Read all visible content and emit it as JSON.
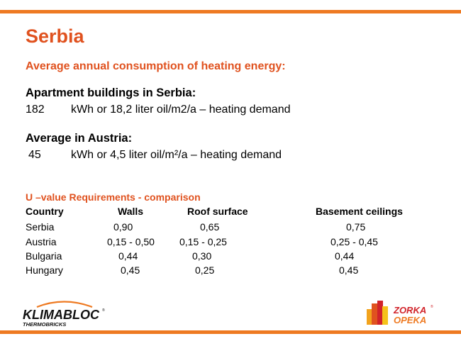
{
  "slide": {
    "title": "Serbia",
    "subtitle": "Average annual consumption of heating energy:",
    "serbia": {
      "heading": "Apartment buildings in Serbia:",
      "value": "182",
      "description": "kWh or 18,2 liter oil/m2/a – heating demand"
    },
    "austria": {
      "heading": "Average in Austria:",
      "value": "45",
      "description": "kWh or 4,5 liter oil/m²/a – heating demand"
    },
    "table": {
      "title": "U –value Requirements - comparison",
      "headers": [
        "Country",
        "Walls",
        "Roof surface",
        "Basement ceilings"
      ],
      "rows": [
        [
          "Serbia",
          "0,90",
          "0,65",
          "0,75"
        ],
        [
          "Austria",
          "0,15 - 0,50",
          "0,15 - 0,25",
          "0,25 - 0,45"
        ],
        [
          "Bulgaria",
          "0,44",
          "0,30",
          "0,44"
        ],
        [
          "Hungary",
          "0,45",
          "0,25",
          "0,45"
        ]
      ]
    }
  },
  "logos": {
    "left": {
      "name": "KLIMABLOC",
      "tagline": "THERMOBRICKS",
      "mark": "®"
    },
    "right": {
      "line1": "ZORKA",
      "line2": "OPEKA",
      "mark": "®"
    }
  },
  "colors": {
    "accent": "#ee7a22",
    "title": "#e0521f"
  }
}
